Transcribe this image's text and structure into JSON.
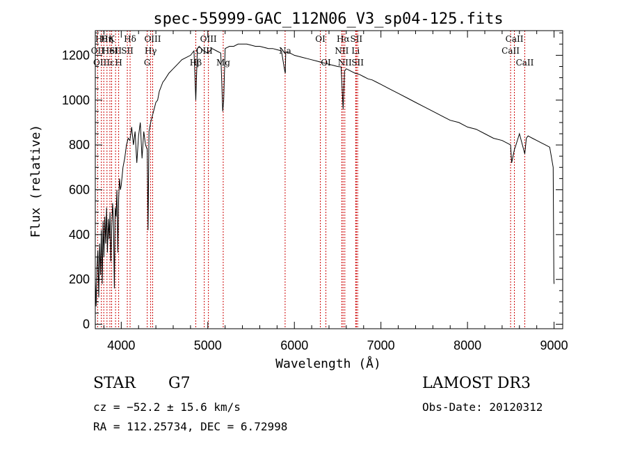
{
  "chart_data": {
    "type": "line",
    "title": "spec-55999-GAC_112N06_V3_sp04-125.fits",
    "xlabel": "Wavelength (Å)",
    "ylabel": "Flux (relative)",
    "xlim": [
      3700,
      9100
    ],
    "ylim": [
      -20,
      1310
    ],
    "x_ticks": [
      4000,
      5000,
      6000,
      7000,
      8000,
      9000
    ],
    "y_ticks": [
      0,
      200,
      400,
      600,
      800,
      1000,
      1200
    ],
    "series": [
      {
        "name": "flux",
        "x": [
          3700,
          3710,
          3720,
          3730,
          3740,
          3750,
          3760,
          3770,
          3780,
          3790,
          3800,
          3810,
          3820,
          3830,
          3840,
          3850,
          3860,
          3870,
          3880,
          3890,
          3900,
          3910,
          3920,
          3930,
          3940,
          3950,
          3960,
          3970,
          3980,
          3990,
          4000,
          4020,
          4040,
          4060,
          4080,
          4100,
          4120,
          4140,
          4160,
          4180,
          4200,
          4220,
          4240,
          4260,
          4280,
          4300,
          4310,
          4320,
          4340,
          4360,
          4380,
          4400,
          4420,
          4440,
          4460,
          4480,
          4500,
          4550,
          4600,
          4650,
          4700,
          4750,
          4800,
          4840,
          4861,
          4880,
          4900,
          4950,
          5000,
          5050,
          5100,
          5150,
          5172,
          5183,
          5200,
          5250,
          5300,
          5350,
          5400,
          5450,
          5500,
          5550,
          5600,
          5650,
          5700,
          5750,
          5800,
          5850,
          5889,
          5895,
          5900,
          5950,
          6000,
          6050,
          6100,
          6150,
          6200,
          6250,
          6300,
          6350,
          6400,
          6450,
          6500,
          6540,
          6563,
          6580,
          6600,
          6650,
          6700,
          6750,
          6800,
          6850,
          6900,
          6950,
          7000,
          7100,
          7200,
          7300,
          7400,
          7500,
          7600,
          7700,
          7800,
          7900,
          8000,
          8100,
          8200,
          8300,
          8400,
          8498,
          8510,
          8542,
          8560,
          8600,
          8662,
          8680,
          8700,
          8750,
          8800,
          8850,
          8900,
          8950,
          8990,
          8998,
          9000
        ],
        "y": [
          200,
          80,
          260,
          330,
          120,
          360,
          220,
          420,
          180,
          460,
          300,
          480,
          360,
          520,
          320,
          470,
          380,
          500,
          280,
          430,
          540,
          460,
          160,
          520,
          480,
          600,
          320,
          560,
          650,
          600,
          620,
          700,
          740,
          800,
          830,
          820,
          880,
          800,
          860,
          720,
          840,
          900,
          740,
          860,
          800,
          780,
          420,
          860,
          900,
          930,
          960,
          990,
          1000,
          1040,
          1060,
          1080,
          1090,
          1120,
          1140,
          1160,
          1180,
          1190,
          1200,
          1220,
          1000,
          1230,
          1240,
          1220,
          1210,
          1230,
          1220,
          1210,
          950,
          1000,
          1230,
          1240,
          1240,
          1250,
          1250,
          1250,
          1245,
          1240,
          1240,
          1235,
          1230,
          1230,
          1225,
          1220,
          1130,
          1120,
          1215,
          1210,
          1200,
          1195,
          1190,
          1185,
          1180,
          1175,
          1170,
          1165,
          1160,
          1155,
          1150,
          1148,
          960,
          1130,
          1140,
          1130,
          1120,
          1115,
          1105,
          1095,
          1090,
          1080,
          1070,
          1050,
          1030,
          1010,
          990,
          970,
          950,
          930,
          910,
          900,
          880,
          870,
          850,
          830,
          820,
          800,
          720,
          780,
          800,
          850,
          760,
          830,
          840,
          830,
          820,
          810,
          800,
          790,
          700,
          200,
          180
        ]
      }
    ],
    "lines": [
      {
        "wl": 3727,
        "label": "OII",
        "row": 2
      },
      {
        "wl": 3770,
        "label": "Hθ",
        "row": 1
      },
      {
        "wl": 3798,
        "label": "OIIIε",
        "row": 3
      },
      {
        "wl": 3835,
        "label": "Hη",
        "row": 1
      },
      {
        "wl": 3869,
        "label": "HeI",
        "row": 2
      },
      {
        "wl": 3889,
        "label": "K",
        "row": 1
      },
      {
        "wl": 3934,
        "label": "SII",
        "row": 2
      },
      {
        "wl": 3970,
        "label": "H",
        "row": 3
      },
      {
        "wl": 4102,
        "label": "Hδ",
        "row": 1
      },
      {
        "wl": 4070,
        "label": "SII",
        "row": 2
      },
      {
        "wl": 4300,
        "label": "G",
        "row": 3
      },
      {
        "wl": 4340,
        "label": "Hγ",
        "row": 2
      },
      {
        "wl": 4363,
        "label": "OIII",
        "row": 1
      },
      {
        "wl": 4861,
        "label": "Hβ",
        "row": 3
      },
      {
        "wl": 4959,
        "label": "OIII",
        "row": 2
      },
      {
        "wl": 5007,
        "label": "OIII",
        "row": 1
      },
      {
        "wl": 5178,
        "label": "Mg",
        "row": 3
      },
      {
        "wl": 5893,
        "label": "Na",
        "row": 2
      },
      {
        "wl": 6300,
        "label": "OI",
        "row": 1
      },
      {
        "wl": 6364,
        "label": "OI",
        "row": 3
      },
      {
        "wl": 6548,
        "label": "NII",
        "row": 2
      },
      {
        "wl": 6563,
        "label": "Hα",
        "row": 1
      },
      {
        "wl": 6583,
        "label": "NII",
        "row": 3
      },
      {
        "wl": 6708,
        "label": "Li",
        "row": 2
      },
      {
        "wl": 6716,
        "label": "SII",
        "row": 1
      },
      {
        "wl": 6731,
        "label": "SII",
        "row": 3
      },
      {
        "wl": 8498,
        "label": "CaII",
        "row": 2
      },
      {
        "wl": 8542,
        "label": "CaII",
        "row": 1
      },
      {
        "wl": 8662,
        "label": "CaII",
        "row": 3
      }
    ]
  },
  "info": {
    "object_class": "STAR",
    "subclass": "G7",
    "cz": "cz = −52.2 ± 15.6 km/s",
    "coords": "RA = 112.25734, DEC =   6.72998",
    "survey": "LAMOST DR3",
    "obs_date": "Obs-Date: 20120312"
  },
  "colors": {
    "axis": "#000000",
    "spectrum": "#000000",
    "line_marker": "#cc0000"
  }
}
